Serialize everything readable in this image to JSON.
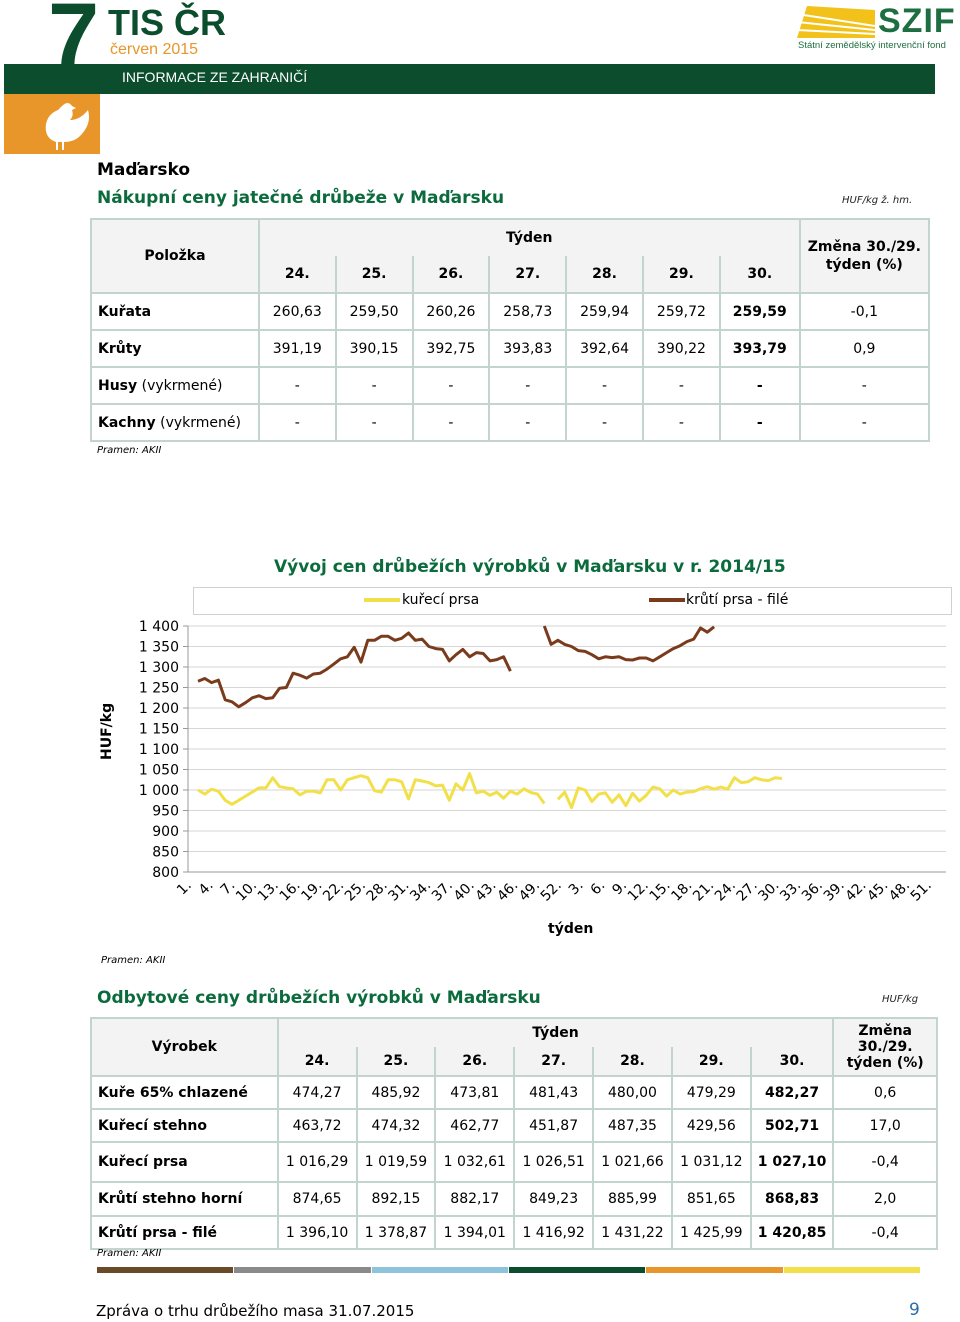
{
  "header": {
    "logo_number": "7",
    "logo_text": "TIS ČR",
    "month": "červen 2015",
    "section": "INFORMACE ZE ZAHRANIČÍ",
    "szif_logo": "SZIF",
    "szif_subtitle": "Státní zemědělský intervenční fond"
  },
  "country": "Maďarsko",
  "table1": {
    "title": "Nákupní ceny jatečné drůbeže v Maďarsku",
    "unit": "HUF/kg ž. hm.",
    "col_item": "Položka",
    "col_week": "Týden",
    "col_change": "Změna 30./29. týden (%)",
    "weeks": [
      "24.",
      "25.",
      "26.",
      "27.",
      "28.",
      "29.",
      "30."
    ],
    "rows": [
      {
        "name": "Kuřata",
        "note": "",
        "values": [
          "260,63",
          "259,50",
          "260,26",
          "258,73",
          "259,94",
          "259,72",
          "259,59"
        ],
        "change": "-0,1"
      },
      {
        "name": "Krůty",
        "note": "",
        "values": [
          "391,19",
          "390,15",
          "392,75",
          "393,83",
          "392,64",
          "390,22",
          "393,79"
        ],
        "change": "0,9"
      },
      {
        "name": "Husy",
        "note": " (vykrmené)",
        "values": [
          "-",
          "-",
          "-",
          "-",
          "-",
          "-",
          "-"
        ],
        "change": "-"
      },
      {
        "name": "Kachny",
        "note": " (vykrmené)",
        "values": [
          "-",
          "-",
          "-",
          "-",
          "-",
          "-",
          "-"
        ],
        "change": "-"
      }
    ],
    "source": "Pramen: AKII"
  },
  "chart_data": {
    "type": "line",
    "title": "Vývoj cen drůbežích výrobků v Maďarsku v r. 2014/15",
    "ylabel": "HUF/kg",
    "xlabel": "týden",
    "ylim": [
      800,
      1400
    ],
    "yticks": [
      "1 400",
      "1 350",
      "1 300",
      "1 250",
      "1 200",
      "1 150",
      "1 100",
      "1 050",
      "1 000",
      "950",
      "900",
      "850",
      "800"
    ],
    "xticks": [
      "1.",
      "4.",
      "7.",
      "10.",
      "13.",
      "16.",
      "19.",
      "22.",
      "25.",
      "28.",
      "31.",
      "34.",
      "37.",
      "40.",
      "43.",
      "46.",
      "49.",
      "52.",
      "3.",
      "6.",
      "9.",
      "12.",
      "15.",
      "18.",
      "21.",
      "24.",
      "27.",
      "30.",
      "33.",
      "36.",
      "39.",
      "42.",
      "45.",
      "48.",
      "51."
    ],
    "series": [
      {
        "name": "kuřecí prsa",
        "color": "#f2e04a",
        "values": [
          1000,
          990,
          1002,
          997,
          975,
          965,
          975,
          985,
          995,
          1005,
          1005,
          1030,
          1008,
          1005,
          1003,
          988,
          997,
          997,
          993,
          1025,
          1025,
          1000,
          1025,
          1030,
          1035,
          1030,
          998,
          995,
          1025,
          1025,
          1020,
          978,
          1025,
          1022,
          1018,
          1010,
          1012,
          975,
          1015,
          1000,
          1040,
          993,
          997,
          987,
          995,
          980,
          997,
          990,
          1003,
          994,
          990,
          967,
          null,
          977,
          995,
          957,
          1005,
          1000,
          972,
          990,
          993,
          970,
          988,
          962,
          992,
          973,
          987,
          1007,
          1003,
          985,
          1000,
          990,
          995,
          996,
          1003,
          1008,
          1002,
          1007,
          1002,
          1030,
          1018,
          1020,
          1030,
          1025,
          1023,
          1030,
          1028
        ]
      },
      {
        "name": "krůtí prsa - filé",
        "color": "#7a3b1d",
        "values": [
          1265,
          1272,
          1262,
          1268,
          1220,
          1215,
          1203,
          1213,
          1225,
          1230,
          1223,
          1225,
          1248,
          1250,
          1285,
          1280,
          1273,
          1283,
          1285,
          1295,
          1307,
          1320,
          1325,
          1348,
          1312,
          1365,
          1365,
          1375,
          1375,
          1365,
          1370,
          1383,
          1365,
          1368,
          1350,
          1345,
          1343,
          1315,
          1330,
          1343,
          1325,
          1335,
          1333,
          1315,
          1318,
          1325,
          1290,
          null,
          null,
          null,
          null,
          1400,
          1355,
          1365,
          1355,
          1350,
          1340,
          1338,
          1330,
          1320,
          1325,
          1323,
          1325,
          1318,
          1317,
          1322,
          1322,
          1315,
          1325,
          1335,
          1345,
          1352,
          1362,
          1368,
          1395,
          1385,
          1398
        ]
      }
    ]
  },
  "chart_source": "Pramen: AKII",
  "table2": {
    "title": "Odbytové ceny drůbežích výrobků v Maďarsku",
    "unit": "HUF/kg",
    "col_item": "Výrobek",
    "col_week": "Týden",
    "col_change": "Změna 30./29. týden (%)",
    "weeks": [
      "24.",
      "25.",
      "26.",
      "27.",
      "28.",
      "29.",
      "30."
    ],
    "rows": [
      {
        "name": "Kuře 65% chlazené",
        "values": [
          "474,27",
          "485,92",
          "473,81",
          "481,43",
          "480,00",
          "479,29",
          "482,27"
        ],
        "change": "0,6"
      },
      {
        "name": "Kuřecí stehno",
        "values": [
          "463,72",
          "474,32",
          "462,77",
          "451,87",
          "487,35",
          "429,56",
          "502,71"
        ],
        "change": "17,0"
      },
      {
        "name": "Kuřecí prsa",
        "values": [
          "1 016,29",
          "1 019,59",
          "1 032,61",
          "1 026,51",
          "1 021,66",
          "1 031,12",
          "1 027,10"
        ],
        "change": "-0,4"
      },
      {
        "name": "Krůtí stehno horní",
        "values": [
          "874,65",
          "892,15",
          "882,17",
          "849,23",
          "885,99",
          "851,65",
          "868,83"
        ],
        "change": "2,0"
      },
      {
        "name": "Krůtí prsa - filé",
        "values": [
          "1 396,10",
          "1 378,87",
          "1 394,01",
          "1 416,92",
          "1 431,22",
          "1 425,99",
          "1 420,85"
        ],
        "change": "-0,4"
      }
    ],
    "source": "Pramen: AKII"
  },
  "footer": {
    "text": "Zpráva o trhu drůbežího masa 31.07.2015",
    "page": "9",
    "bar_colors": [
      "#6b4a2a",
      "#8a8a8a",
      "#8ec3dc",
      "#0b4d2c",
      "#e8962a",
      "#f2e04a"
    ]
  }
}
